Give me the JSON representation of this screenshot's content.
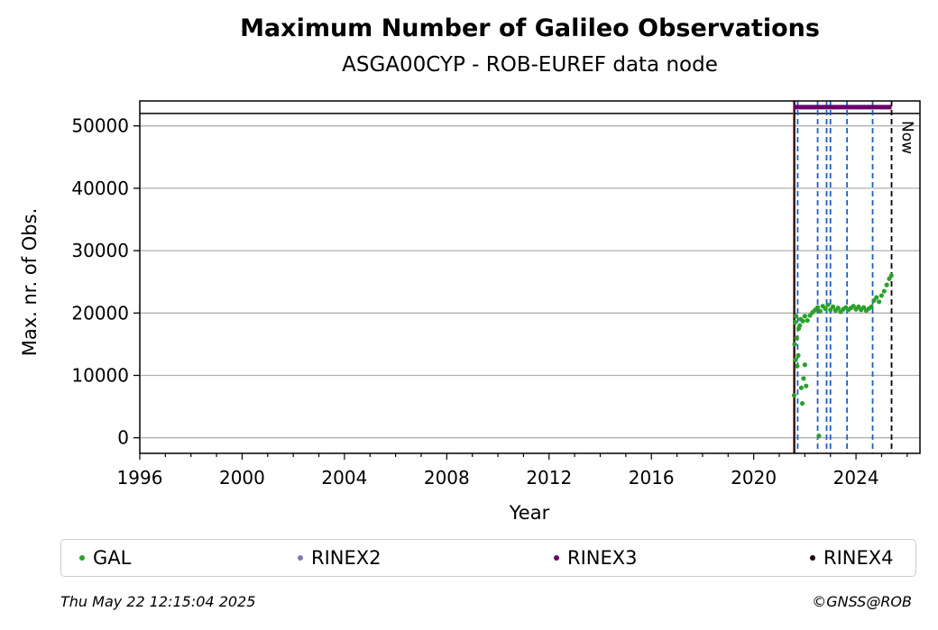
{
  "title": "Maximum Number of Galileo Observations",
  "subtitle": "ASGA00CYP - ROB-EUREF data node",
  "footer": {
    "timestamp": "Thu May 22 12:15:04 2025",
    "credit": "©GNSS@ROB"
  },
  "colors": {
    "gal": "#2ca02c",
    "rinex2": "#7b7bb5",
    "rinex3": "#6a006a",
    "rinex4": "#1a0014",
    "vline_blue": "#1f5fbf",
    "vline_red": "#d62728",
    "grid": "#b0b0b0"
  },
  "legend": [
    {
      "label": "GAL",
      "color": "#2ca02c"
    },
    {
      "label": "RINEX2",
      "color": "#7b7bb5"
    },
    {
      "label": "RINEX3",
      "color": "#6a006a"
    },
    {
      "label": "RINEX4",
      "color": "#1a0014"
    }
  ],
  "chart_data": {
    "type": "scatter",
    "title": "Maximum Number of Galileo Observations",
    "subtitle": "ASGA00CYP - ROB-EUREF data node",
    "xlabel": "Year",
    "ylabel": "Max. nr. of Obs.",
    "xlim": [
      1996,
      2026.5
    ],
    "ylim": [
      -2500,
      54000
    ],
    "xticks": [
      1996,
      2000,
      2004,
      2008,
      2012,
      2016,
      2020,
      2024
    ],
    "yticks": [
      0,
      10000,
      20000,
      30000,
      40000,
      50000
    ],
    "grid": "horizontal",
    "legend_position": "bottom",
    "hline": 52000,
    "vlines_blue_dashed": [
      2021.72,
      2022.5,
      2022.85,
      2023.0,
      2023.65,
      2024.65
    ],
    "vline_red": 2021.57,
    "vline_black_solid": 2021.6,
    "vline_now": {
      "x": 2025.39,
      "label": "Now"
    },
    "rinex3_range": {
      "x0": 2021.57,
      "x1": 2025.39,
      "y": 53000
    },
    "series": [
      {
        "name": "GAL",
        "color": "#2ca02c",
        "points": [
          [
            2021.58,
            6800
          ],
          [
            2021.6,
            15000
          ],
          [
            2021.62,
            18500
          ],
          [
            2021.64,
            12500
          ],
          [
            2021.66,
            19500
          ],
          [
            2021.7,
            11500
          ],
          [
            2021.74,
            13200
          ],
          [
            2021.8,
            18000
          ],
          [
            2021.86,
            8000
          ],
          [
            2021.9,
            5500
          ],
          [
            2021.95,
            9500
          ],
          [
            2022.0,
            11700
          ],
          [
            2022.05,
            8300
          ],
          [
            2022.55,
            300
          ],
          [
            2021.68,
            16000
          ],
          [
            2021.76,
            17500
          ],
          [
            2021.84,
            19000
          ],
          [
            2021.92,
            18700
          ],
          [
            2022.0,
            19500
          ],
          [
            2022.1,
            18800
          ],
          [
            2022.2,
            19600
          ],
          [
            2022.3,
            20100
          ],
          [
            2022.4,
            20500
          ],
          [
            2022.5,
            20900
          ],
          [
            2022.6,
            20300
          ],
          [
            2022.7,
            21100
          ],
          [
            2022.8,
            20700
          ],
          [
            2022.9,
            21300
          ],
          [
            2023.0,
            20500
          ],
          [
            2023.1,
            21000
          ],
          [
            2023.2,
            20400
          ],
          [
            2023.3,
            20800
          ],
          [
            2023.4,
            20200
          ],
          [
            2023.5,
            20600
          ],
          [
            2023.6,
            20900
          ],
          [
            2023.7,
            20500
          ],
          [
            2023.8,
            20800
          ],
          [
            2023.9,
            21100
          ],
          [
            2024.0,
            20600
          ],
          [
            2024.1,
            21000
          ],
          [
            2024.2,
            20500
          ],
          [
            2024.3,
            20900
          ],
          [
            2024.4,
            20400
          ],
          [
            2024.5,
            20700
          ],
          [
            2024.6,
            21000
          ],
          [
            2024.7,
            22000
          ],
          [
            2024.8,
            22500
          ],
          [
            2024.9,
            21800
          ],
          [
            2025.0,
            22800
          ],
          [
            2025.1,
            23500
          ],
          [
            2025.2,
            24500
          ],
          [
            2025.3,
            25500
          ],
          [
            2025.38,
            26000
          ]
        ]
      }
    ]
  }
}
